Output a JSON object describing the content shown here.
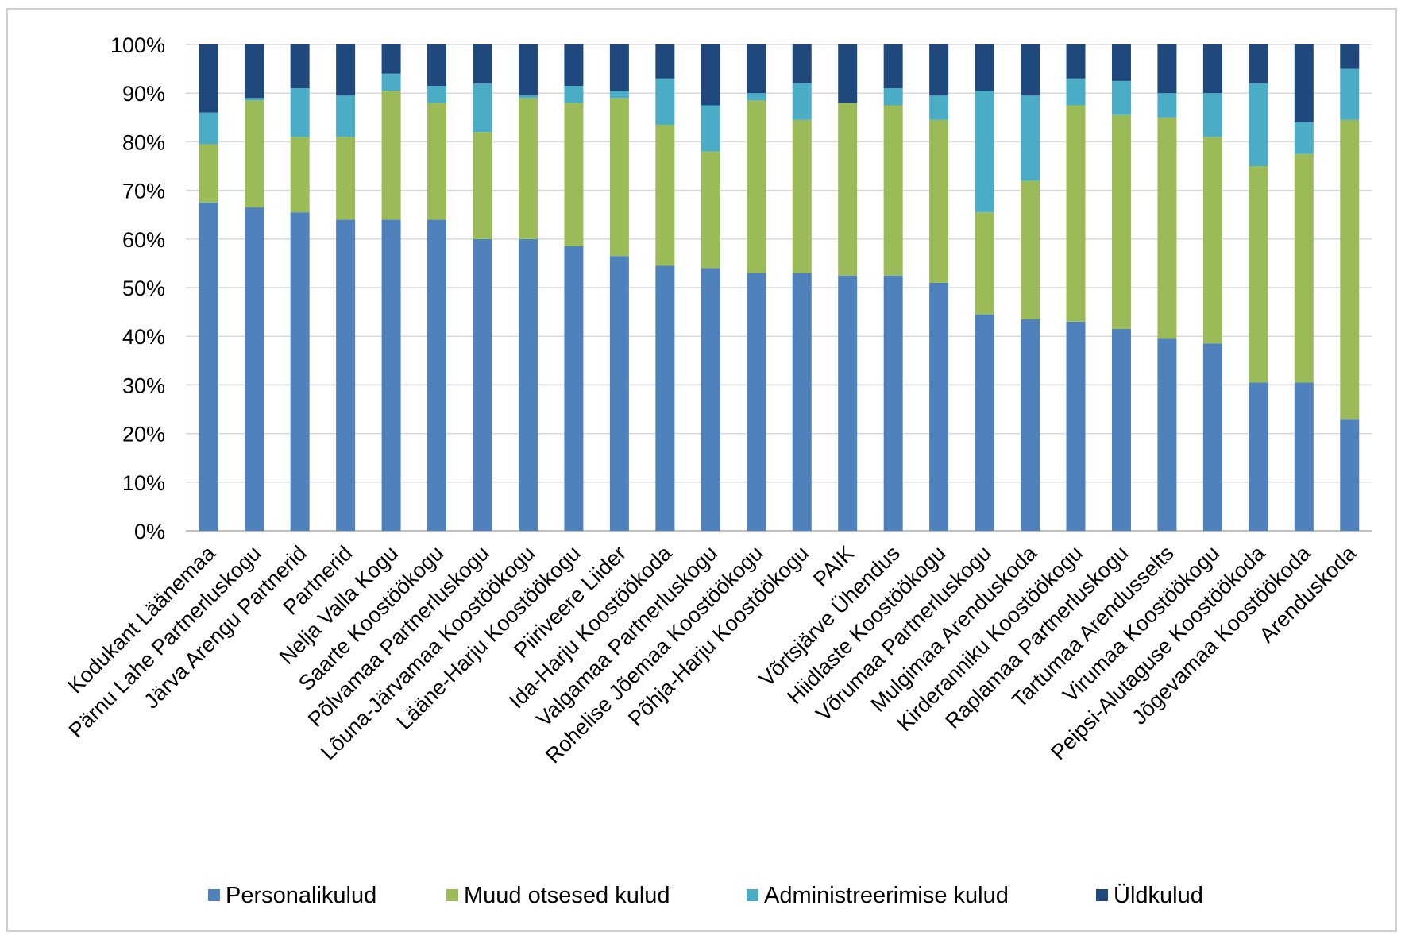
{
  "chart_data": {
    "type": "bar",
    "stacked": true,
    "percent_stacked": true,
    "title": "",
    "xlabel": "",
    "ylabel": "",
    "ylim": [
      0,
      100
    ],
    "yticks": [
      "0%",
      "10%",
      "20%",
      "30%",
      "40%",
      "50%",
      "60%",
      "70%",
      "80%",
      "90%",
      "100%"
    ],
    "grid": "horizontal",
    "legend_position": "bottom",
    "categories": [
      "Kodukant Läänemaa",
      "Pärnu Lahe Partnerluskogu",
      "Järva Arengu Partnerid",
      "Partnerid",
      "Nelja Valla Kogu",
      "Saarte Koostöökogu",
      "Põlvamaa Partnerluskogu",
      "Lõuna-Järvamaa Koostöökogu",
      "Lääne-Harju Koostöökogu",
      "Piiriveere Liider",
      "Ida-Harju Koostöökoda",
      "Valgamaa Partnerluskogu",
      "Rohelise Jõemaa Koostöökogu",
      "Põhja-Harju Koostöökogu",
      "PAIK",
      "Võrtsjärve Ühendus",
      "Hiidlaste Koostöökogu",
      "Võrumaa Partnerluskogu",
      "Mulgimaa Arenduskoda",
      "Kirderanniku Koostöökogu",
      "Raplamaa Partnerluskogu",
      "Tartumaa Arendusselts",
      "Virumaa Koostöökogu",
      "Peipsi-Alutaguse Koostöökoda",
      "Jõgevamaa Koostöökoda",
      "Arenduskoda"
    ],
    "series": [
      {
        "name": "Personalikulud",
        "color": "#4f81bd",
        "values": [
          67.5,
          66.5,
          65.5,
          64,
          64,
          64,
          60,
          60,
          58.5,
          56.5,
          54.5,
          54,
          53,
          53,
          52.5,
          52.5,
          51,
          44.5,
          43.5,
          43,
          41.5,
          39.5,
          38.5,
          30.5,
          30.5,
          23
        ]
      },
      {
        "name": "Muud otsesed kulud",
        "color": "#9bbb59",
        "values": [
          12,
          22,
          15.5,
          17,
          26.5,
          24,
          22,
          29,
          29.5,
          32.5,
          29,
          24,
          35.5,
          31.5,
          35.5,
          35,
          33.5,
          21,
          28.5,
          44.5,
          44,
          45.5,
          42.5,
          44.5,
          47,
          61.5
        ]
      },
      {
        "name": "Administreerimise kulud",
        "color": "#4bacc6",
        "values": [
          6.5,
          0.5,
          10,
          8.5,
          3.5,
          3.5,
          10,
          0.5,
          3.5,
          1.5,
          9.5,
          9.5,
          1.5,
          7.5,
          0,
          3.5,
          5,
          25,
          17.5,
          5.5,
          7,
          5,
          9,
          17,
          6.5,
          10.5
        ]
      },
      {
        "name": "Üldkulud",
        "color": "#1f497d",
        "values": [
          14,
          11,
          9,
          10.5,
          6,
          8.5,
          8,
          10.5,
          8.5,
          9.5,
          7,
          12.5,
          10,
          8,
          12,
          9,
          10.5,
          9.5,
          10.5,
          7,
          7.5,
          10,
          10,
          8,
          16,
          5
        ]
      }
    ]
  }
}
